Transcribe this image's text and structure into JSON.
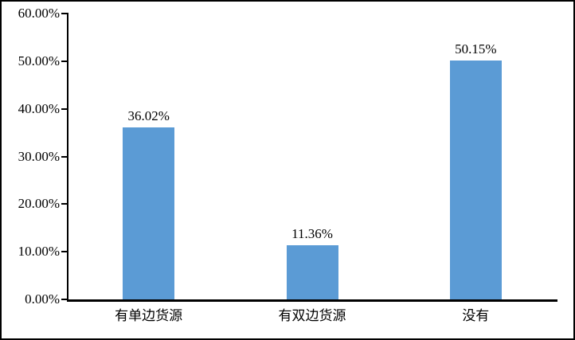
{
  "chart_data": {
    "type": "bar",
    "title": "",
    "xlabel": "",
    "ylabel": "",
    "categories": [
      "有单边货源",
      "有双边货源",
      "没有"
    ],
    "values": [
      36.02,
      11.36,
      50.15
    ],
    "data_labels": [
      "36.02%",
      "11.36%",
      "50.15%"
    ],
    "y_axis": {
      "min": 0,
      "max": 60,
      "tick_values": [
        60,
        50,
        40,
        30,
        20,
        10,
        0
      ],
      "tick_labels": [
        "60.00%",
        "50.00%",
        "40.00%",
        "30.00%",
        "20.00%",
        "10.00%",
        "0.00%"
      ]
    },
    "grid": false,
    "legend": false,
    "bar_color": "#5b9bd5",
    "axis_color": "#000000",
    "text_color": "#000000",
    "background_color": "#ffffff",
    "frame_border_color": "#000000"
  }
}
